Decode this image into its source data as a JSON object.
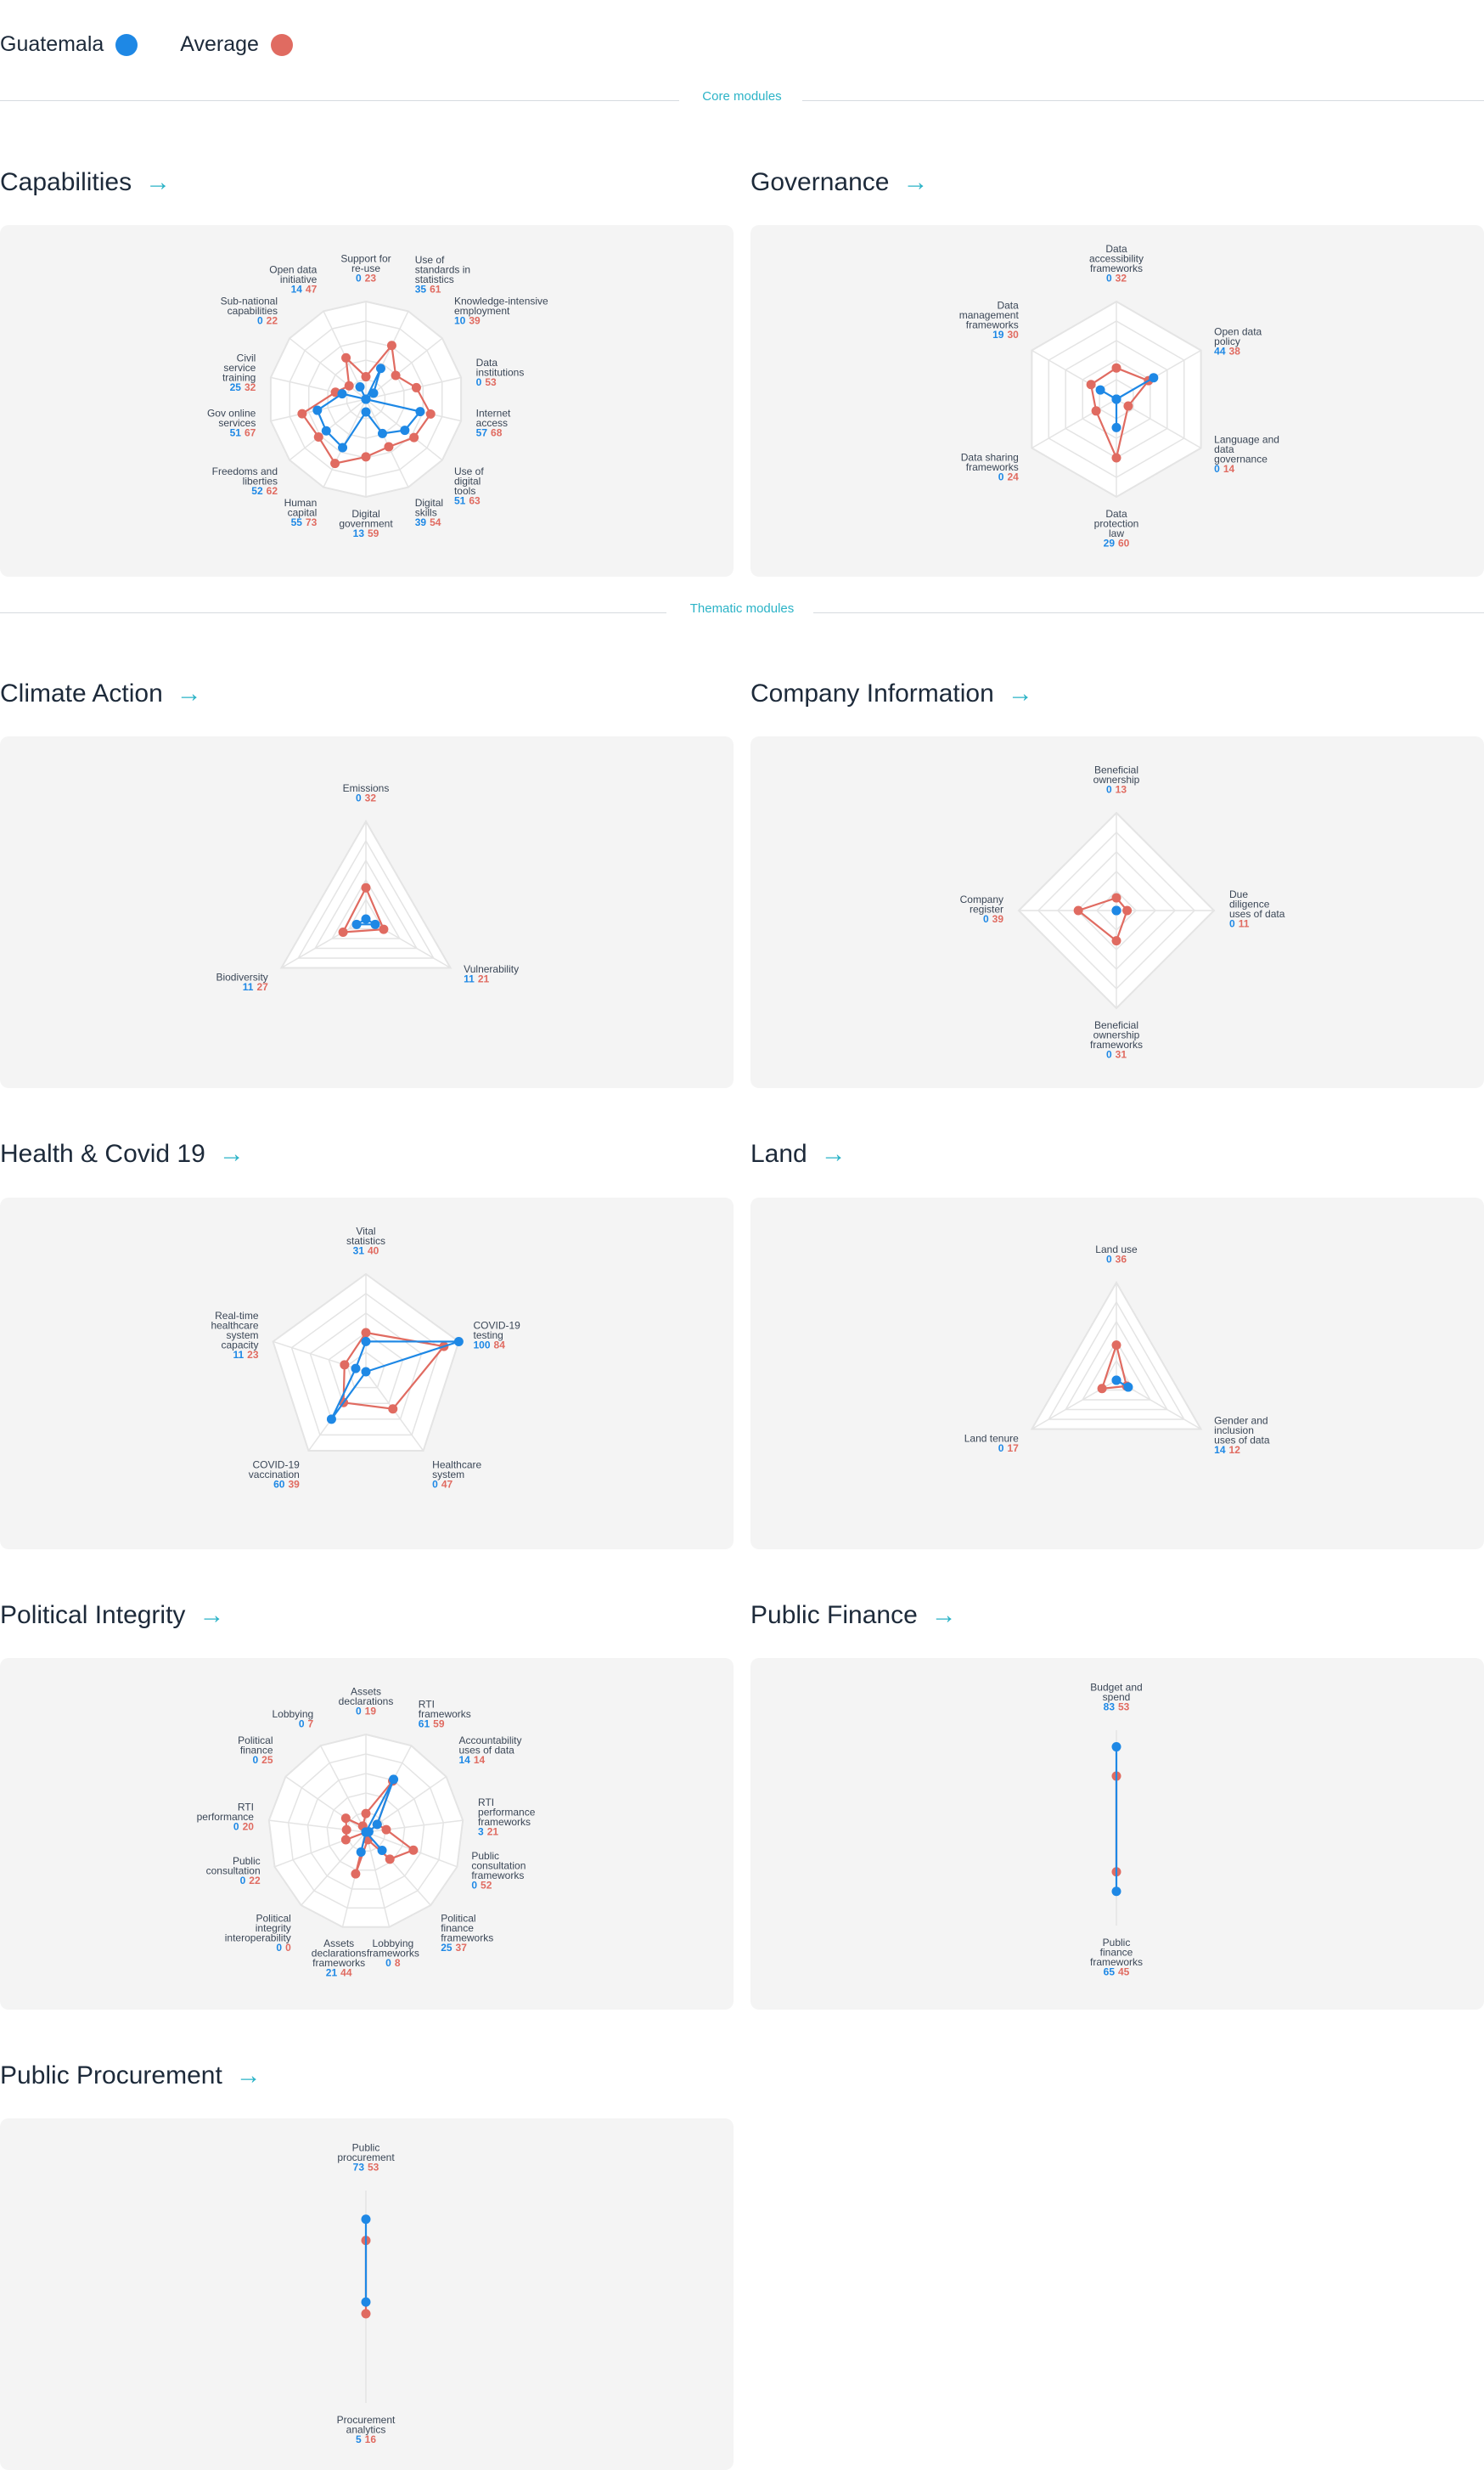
{
  "legend": {
    "country": "Guatemala",
    "average": "Average",
    "colors": {
      "country": "#1e88e5",
      "average": "#e06b61"
    }
  },
  "dividers": {
    "core": "Core modules",
    "thematic": "Thematic modules"
  },
  "arrow_icon": "right-arrow-icon",
  "chart_data": [
    {
      "type": "radar",
      "title": "Capabilities",
      "axes": [
        {
          "label": "Support for re-use",
          "country": 0,
          "average": 23
        },
        {
          "label": "Use of standards in statistics",
          "country": 35,
          "average": 61
        },
        {
          "label": "Knowledge-intensive employment",
          "country": 10,
          "average": 39
        },
        {
          "label": "Data institutions",
          "country": 0,
          "average": 53
        },
        {
          "label": "Internet access",
          "country": 57,
          "average": 68
        },
        {
          "label": "Use of digital tools",
          "country": 51,
          "average": 63
        },
        {
          "label": "Digital skills",
          "country": 39,
          "average": 54
        },
        {
          "label": "Digital government",
          "country": 13,
          "average": 59
        },
        {
          "label": "Human capital",
          "country": 55,
          "average": 73
        },
        {
          "label": "Freedoms and liberties",
          "country": 52,
          "average": 62
        },
        {
          "label": "Gov online services",
          "country": 51,
          "average": 67
        },
        {
          "label": "Civil service training",
          "country": 25,
          "average": 32
        },
        {
          "label": "Sub-national capabilities",
          "country": 0,
          "average": 22
        },
        {
          "label": "Open data initiative",
          "country": 14,
          "average": 47
        }
      ]
    },
    {
      "type": "radar",
      "title": "Governance",
      "axes": [
        {
          "label": "Data accessibility frameworks",
          "country": 0,
          "average": 32
        },
        {
          "label": "Open data policy",
          "country": 44,
          "average": 38
        },
        {
          "label": "Language and data governance",
          "country": 0,
          "average": 14
        },
        {
          "label": "Data protection law",
          "country": 29,
          "average": 60
        },
        {
          "label": "Data sharing frameworks",
          "country": 0,
          "average": 24
        },
        {
          "label": "Data management frameworks",
          "country": 19,
          "average": 30
        }
      ]
    },
    {
      "type": "radar",
      "title": "Climate Action",
      "axes": [
        {
          "label": "Emissions",
          "country": 0,
          "average": 32
        },
        {
          "label": "Vulnerability",
          "country": 11,
          "average": 21
        },
        {
          "label": "Biodiversity",
          "country": 11,
          "average": 27
        }
      ]
    },
    {
      "type": "radar",
      "title": "Company Information",
      "axes": [
        {
          "label": "Beneficial ownership",
          "country": 0,
          "average": 13
        },
        {
          "label": "Due diligence uses of data",
          "country": 0,
          "average": 11
        },
        {
          "label": "Beneficial ownership frameworks",
          "country": 0,
          "average": 31
        },
        {
          "label": "Company register",
          "country": 0,
          "average": 39
        }
      ]
    },
    {
      "type": "radar",
      "title": "Health & Covid 19",
      "axes": [
        {
          "label": "Vital statistics",
          "country": 31,
          "average": 40
        },
        {
          "label": "COVID-19 testing",
          "country": 100,
          "average": 84
        },
        {
          "label": "Healthcare system",
          "country": 0,
          "average": 47
        },
        {
          "label": "COVID-19 vaccination",
          "country": 60,
          "average": 39
        },
        {
          "label": "Real-time healthcare system capacity",
          "country": 11,
          "average": 23
        }
      ]
    },
    {
      "type": "radar",
      "title": "Land",
      "axes": [
        {
          "label": "Land use",
          "country": 0,
          "average": 36
        },
        {
          "label": "Gender and inclusion uses of data",
          "country": 14,
          "average": 12
        },
        {
          "label": "Land tenure",
          "country": 0,
          "average": 17
        }
      ]
    },
    {
      "type": "radar",
      "title": "Political Integrity",
      "axes": [
        {
          "label": "Assets declarations",
          "country": 0,
          "average": 19
        },
        {
          "label": "RTI frameworks",
          "country": 61,
          "average": 59
        },
        {
          "label": "Accountability uses of data",
          "country": 14,
          "average": 14
        },
        {
          "label": "RTI performance frameworks",
          "country": 3,
          "average": 21
        },
        {
          "label": "Public consultation frameworks",
          "country": 0,
          "average": 52
        },
        {
          "label": "Political finance frameworks",
          "country": 25,
          "average": 37
        },
        {
          "label": "Lobbying frameworks",
          "country": 0,
          "average": 8
        },
        {
          "label": "Assets declarations frameworks",
          "country": 21,
          "average": 44
        },
        {
          "label": "Political integrity interoperability",
          "country": 0,
          "average": 0
        },
        {
          "label": "Public consultation",
          "country": 0,
          "average": 22
        },
        {
          "label": "RTI performance",
          "country": 0,
          "average": 20
        },
        {
          "label": "Political finance",
          "country": 0,
          "average": 25
        },
        {
          "label": "Lobbying",
          "country": 0,
          "average": 7
        }
      ]
    },
    {
      "type": "radar",
      "title": "Public Finance",
      "axes": [
        {
          "label": "Budget and spend",
          "country": 83,
          "average": 53
        },
        {
          "label": "Public finance frameworks",
          "country": 65,
          "average": 45
        }
      ]
    },
    {
      "type": "radar",
      "title": "Public Procurement",
      "axes": [
        {
          "label": "Public procurement",
          "country": 73,
          "average": 53
        },
        {
          "label": "Procurement analytics",
          "country": 5,
          "average": 16
        }
      ]
    }
  ]
}
